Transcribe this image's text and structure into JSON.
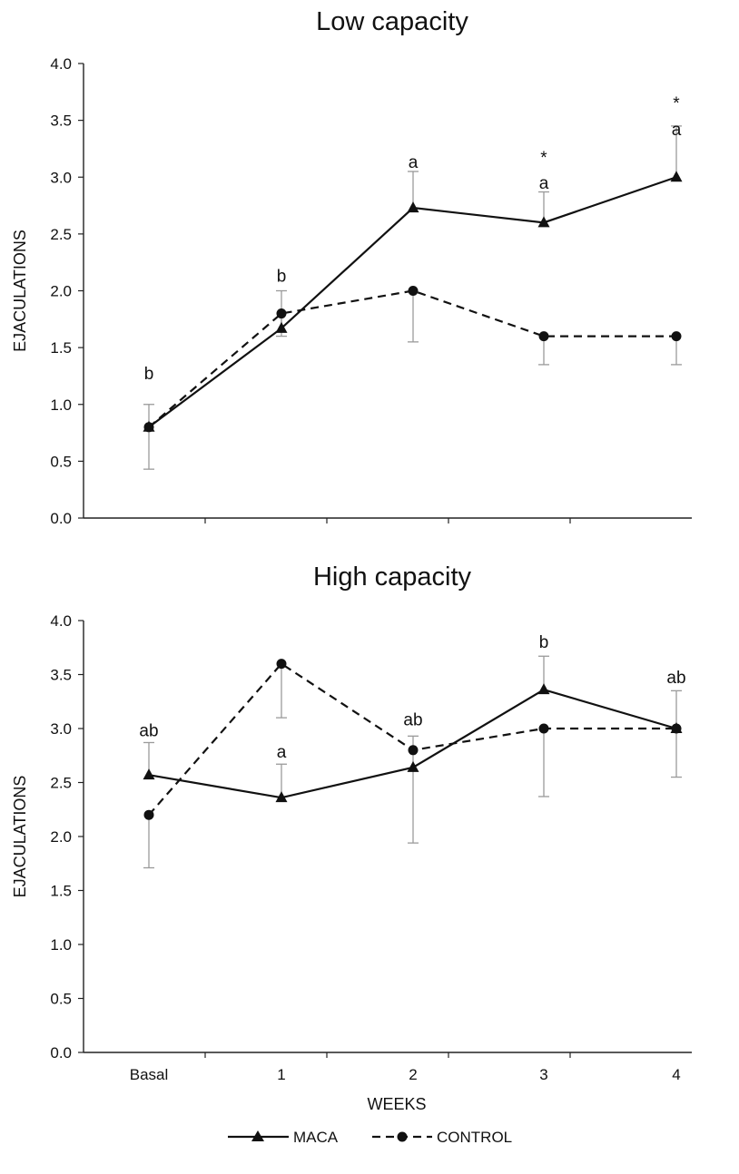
{
  "legend": [
    {
      "name": "MACA",
      "marker": "triangle",
      "line": "solid"
    },
    {
      "name": "CONTROL",
      "marker": "circle",
      "line": "dashed"
    }
  ],
  "chart_data": [
    {
      "type": "line",
      "title": "Low capacity",
      "xlabel": "",
      "ylabel": "EJACULATIONS",
      "categories": [
        "Basal",
        "1",
        "2",
        "3",
        "4"
      ],
      "show_category_labels": false,
      "ylim": [
        0,
        4
      ],
      "yticks": [
        "0.0",
        "0.5",
        "1.0",
        "1.5",
        "2.0",
        "2.5",
        "3.0",
        "3.5",
        "4.0"
      ],
      "series": [
        {
          "name": "MACA",
          "values": [
            0.8,
            1.67,
            2.73,
            2.6,
            3.0
          ],
          "err_up": [
            0.2,
            0.33,
            0.32,
            0.27,
            0.45
          ],
          "err_down": [
            0,
            0,
            0,
            0,
            0
          ]
        },
        {
          "name": "CONTROL",
          "values": [
            0.8,
            1.8,
            2.0,
            1.6,
            1.6
          ],
          "err_up": [
            0,
            0,
            0,
            0,
            0
          ],
          "err_down": [
            0.37,
            0.2,
            0.45,
            0.25,
            0.25
          ]
        }
      ],
      "annotations": [
        {
          "category": "Basal",
          "y": 1.22,
          "text": "b"
        },
        {
          "category": "1",
          "y": 2.08,
          "text": "b"
        },
        {
          "category": "2",
          "y": 3.08,
          "text": "a"
        },
        {
          "category": "3",
          "y": 2.9,
          "text": "a"
        },
        {
          "category": "3",
          "y": 3.12,
          "text": "*"
        },
        {
          "category": "4",
          "y": 3.37,
          "text": "a"
        },
        {
          "category": "4",
          "y": 3.6,
          "text": "*"
        }
      ]
    },
    {
      "type": "line",
      "title": "High capacity",
      "xlabel": "WEEKS",
      "ylabel": "EJACULATIONS",
      "categories": [
        "Basal",
        "1",
        "2",
        "3",
        "4"
      ],
      "show_category_labels": true,
      "ylim": [
        0,
        4
      ],
      "yticks": [
        "0.0",
        "0.5",
        "1.0",
        "1.5",
        "2.0",
        "2.5",
        "3.0",
        "3.5",
        "4.0"
      ],
      "series": [
        {
          "name": "MACA",
          "values": [
            2.57,
            2.36,
            2.64,
            3.36,
            3.0
          ],
          "err_up": [
            0.3,
            0.31,
            0.29,
            0.31,
            0.35
          ],
          "err_down": [
            0,
            0,
            0.7,
            0,
            0
          ]
        },
        {
          "name": "CONTROL",
          "values": [
            2.2,
            3.6,
            2.8,
            3.0,
            3.0
          ],
          "err_up": [
            0,
            0,
            0,
            0,
            0
          ],
          "err_down": [
            0.49,
            0.5,
            0,
            0.63,
            0.45
          ]
        }
      ],
      "annotations": [
        {
          "category": "Basal",
          "y": 2.93,
          "text": "ab"
        },
        {
          "category": "1",
          "y": 2.73,
          "text": "a"
        },
        {
          "category": "2",
          "y": 3.03,
          "text": "ab"
        },
        {
          "category": "3",
          "y": 3.75,
          "text": "b"
        },
        {
          "category": "4",
          "y": 3.42,
          "text": "ab"
        }
      ]
    }
  ]
}
